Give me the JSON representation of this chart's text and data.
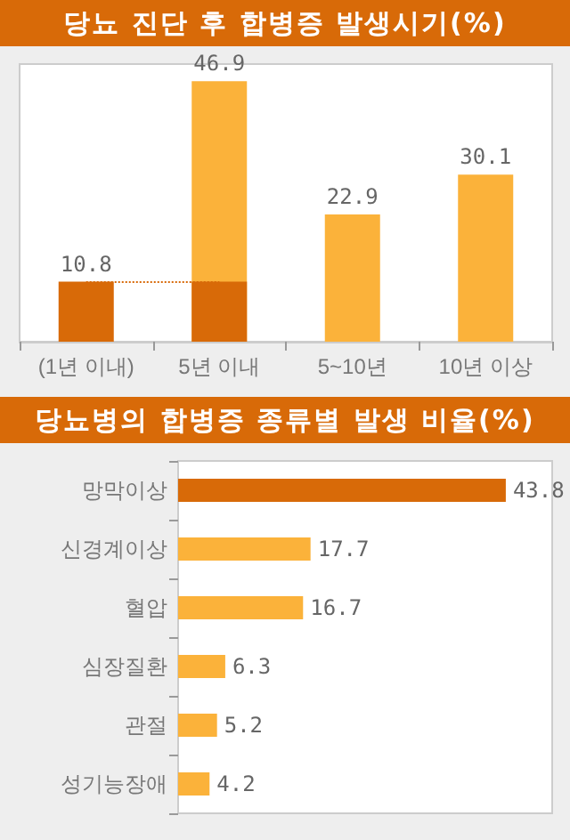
{
  "chart_data": [
    {
      "type": "bar",
      "title": "당뇨 진단 후 합병증 발생시기(%)",
      "categories": [
        "(1년 이내)",
        "5년 이내",
        "5~10년",
        "10년 이상"
      ],
      "series": [
        {
          "color": "#fbb23a",
          "values": [
            null,
            46.9,
            22.9,
            30.1
          ],
          "value_labels": [
            null,
            "46.9",
            "22.9",
            "30.1"
          ]
        },
        {
          "color": "#d86a08",
          "values": [
            10.8,
            10.8,
            null,
            null
          ],
          "value_labels": [
            "10.8",
            null,
            null,
            null
          ]
        }
      ],
      "ref_lines": [
        {
          "axis": "y",
          "value": 10.8,
          "color": "#d86a08",
          "line_style": "dotted"
        }
      ]
    },
    {
      "type": "bar",
      "title": "당뇨병의 합병증 종류별 발생 비율(%)",
      "orientation": "horizontal",
      "categories": [
        "망막이상",
        "신경계이상",
        "혈압",
        "심장질환",
        "관절",
        "성기능장애"
      ],
      "values": [
        43.8,
        17.7,
        16.7,
        6.3,
        5.2,
        4.2
      ],
      "colors": [
        "#d86a08",
        "#fbb23a",
        "#fbb23a",
        "#fbb23a",
        "#fbb23a",
        "#fbb23a"
      ],
      "data_labels": true
    }
  ]
}
